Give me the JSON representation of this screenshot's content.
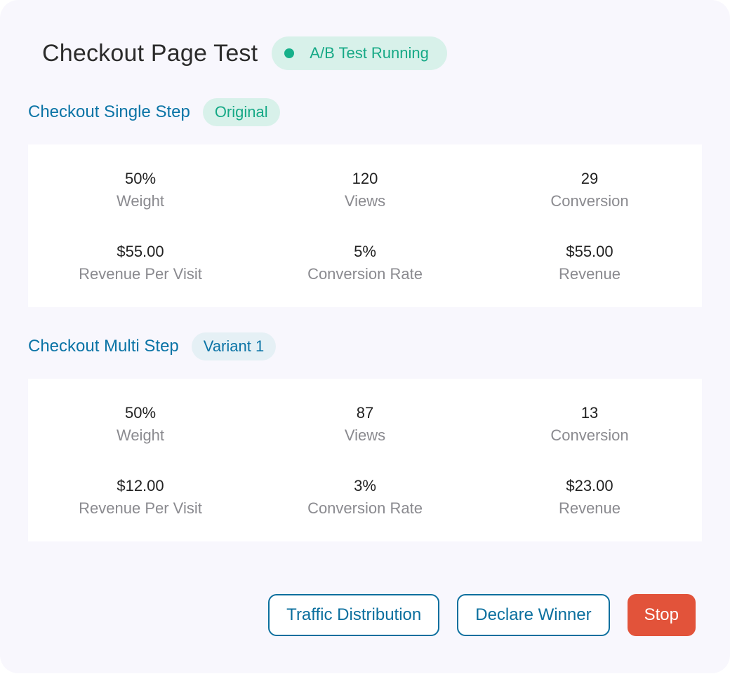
{
  "header": {
    "title": "Checkout Page Test",
    "status": "A/B Test Running"
  },
  "variants": [
    {
      "name": "Checkout Single Step",
      "tag": "Original",
      "stats": [
        {
          "value": "50%",
          "label": "Weight"
        },
        {
          "value": "120",
          "label": "Views"
        },
        {
          "value": "29",
          "label": "Conversion"
        },
        {
          "value": "$55.00",
          "label": "Revenue Per Visit"
        },
        {
          "value": "5%",
          "label": "Conversion Rate"
        },
        {
          "value": "$55.00",
          "label": "Revenue"
        }
      ]
    },
    {
      "name": "Checkout Multi Step",
      "tag": "Variant 1",
      "stats": [
        {
          "value": "50%",
          "label": "Weight"
        },
        {
          "value": "87",
          "label": "Views"
        },
        {
          "value": "13",
          "label": "Conversion"
        },
        {
          "value": "$12.00",
          "label": "Revenue Per Visit"
        },
        {
          "value": "3%",
          "label": "Conversion Rate"
        },
        {
          "value": "$23.00",
          "label": "Revenue"
        }
      ]
    }
  ],
  "actions": {
    "traffic_label": "Traffic Distribution",
    "declare_label": "Declare Winner",
    "stop_label": "Stop"
  },
  "colors": {
    "accent": "#0b74a6",
    "success": "#16b08a",
    "danger": "#e2533a"
  }
}
